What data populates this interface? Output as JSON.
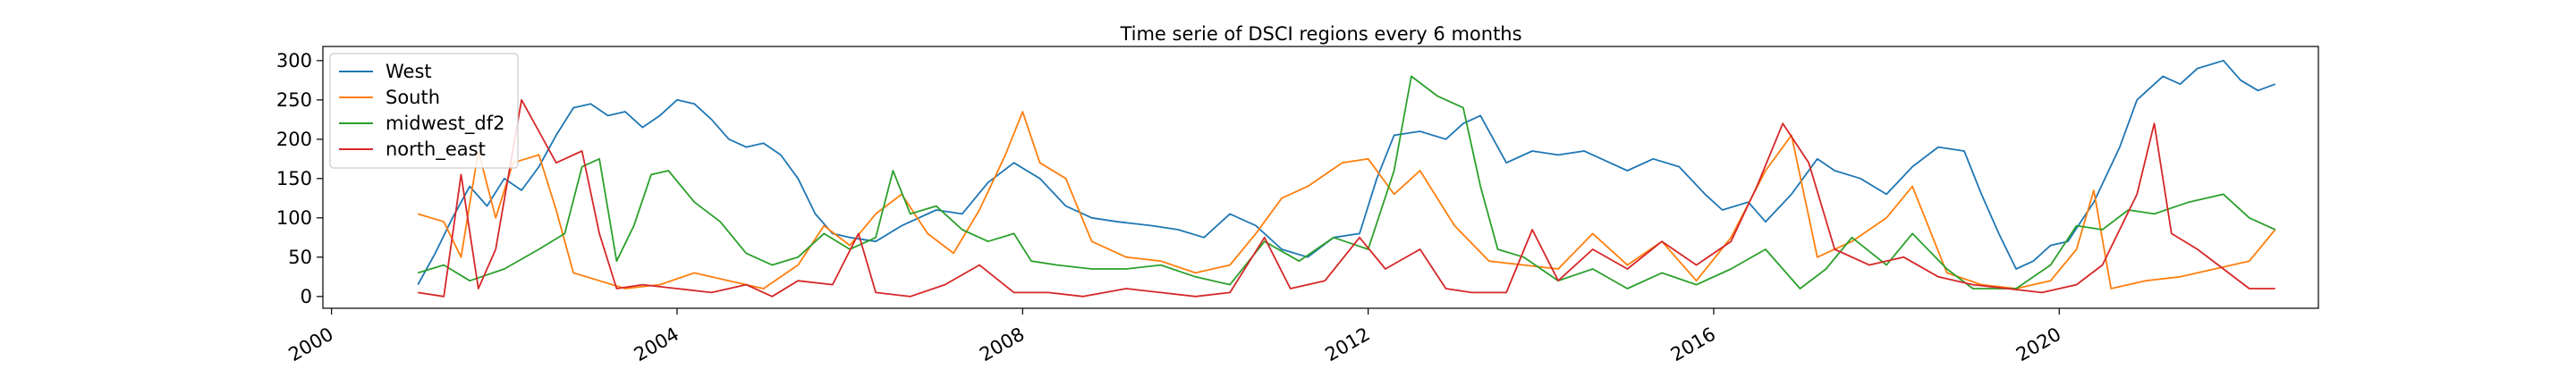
{
  "chart_data": {
    "type": "line",
    "title": "Time serie of DSCI regions every 6 months",
    "xlabel": "",
    "ylabel": "",
    "x_tick_labels": [
      "2000",
      "2004",
      "2008",
      "2012",
      "2016",
      "2020"
    ],
    "x_tick_years": [
      2000,
      2004,
      2008,
      2012,
      2016,
      2020
    ],
    "xlim": [
      1999.9,
      2023.0
    ],
    "y_ticks": [
      0,
      50,
      100,
      150,
      200,
      250,
      300
    ],
    "ylim": [
      -15,
      318
    ],
    "grid": false,
    "legend_position": "top-left",
    "series": [
      {
        "name": "West",
        "color": "#1f77b4",
        "points": [
          [
            2001.0,
            15
          ],
          [
            2001.2,
            55
          ],
          [
            2001.4,
            100
          ],
          [
            2001.6,
            140
          ],
          [
            2001.8,
            115
          ],
          [
            2002.0,
            150
          ],
          [
            2002.2,
            135
          ],
          [
            2002.4,
            165
          ],
          [
            2002.6,
            205
          ],
          [
            2002.8,
            240
          ],
          [
            2003.0,
            245
          ],
          [
            2003.2,
            230
          ],
          [
            2003.4,
            235
          ],
          [
            2003.6,
            215
          ],
          [
            2003.8,
            230
          ],
          [
            2004.0,
            250
          ],
          [
            2004.2,
            245
          ],
          [
            2004.4,
            225
          ],
          [
            2004.6,
            200
          ],
          [
            2004.8,
            190
          ],
          [
            2005.0,
            195
          ],
          [
            2005.2,
            180
          ],
          [
            2005.4,
            150
          ],
          [
            2005.6,
            105
          ],
          [
            2005.8,
            80
          ],
          [
            2006.0,
            75
          ],
          [
            2006.3,
            70
          ],
          [
            2006.6,
            90
          ],
          [
            2007.0,
            110
          ],
          [
            2007.3,
            105
          ],
          [
            2007.6,
            145
          ],
          [
            2007.9,
            170
          ],
          [
            2008.2,
            150
          ],
          [
            2008.5,
            115
          ],
          [
            2008.8,
            100
          ],
          [
            2009.1,
            95
          ],
          [
            2009.5,
            90
          ],
          [
            2009.8,
            85
          ],
          [
            2010.1,
            75
          ],
          [
            2010.4,
            105
          ],
          [
            2010.7,
            90
          ],
          [
            2011.0,
            60
          ],
          [
            2011.3,
            50
          ],
          [
            2011.6,
            75
          ],
          [
            2011.9,
            80
          ],
          [
            2012.1,
            150
          ],
          [
            2012.3,
            205
          ],
          [
            2012.6,
            210
          ],
          [
            2012.9,
            200
          ],
          [
            2013.1,
            220
          ],
          [
            2013.3,
            230
          ],
          [
            2013.6,
            170
          ],
          [
            2013.9,
            185
          ],
          [
            2014.2,
            180
          ],
          [
            2014.5,
            185
          ],
          [
            2014.8,
            170
          ],
          [
            2015.0,
            160
          ],
          [
            2015.3,
            175
          ],
          [
            2015.6,
            165
          ],
          [
            2015.9,
            130
          ],
          [
            2016.1,
            110
          ],
          [
            2016.4,
            120
          ],
          [
            2016.6,
            95
          ],
          [
            2016.9,
            130
          ],
          [
            2017.2,
            175
          ],
          [
            2017.4,
            160
          ],
          [
            2017.7,
            150
          ],
          [
            2018.0,
            130
          ],
          [
            2018.3,
            165
          ],
          [
            2018.6,
            190
          ],
          [
            2018.9,
            185
          ],
          [
            2019.1,
            130
          ],
          [
            2019.3,
            80
          ],
          [
            2019.5,
            35
          ],
          [
            2019.7,
            45
          ],
          [
            2019.9,
            65
          ],
          [
            2020.1,
            70
          ],
          [
            2020.4,
            120
          ],
          [
            2020.7,
            190
          ],
          [
            2020.9,
            250
          ],
          [
            2021.2,
            280
          ],
          [
            2021.4,
            270
          ],
          [
            2021.6,
            290
          ],
          [
            2021.9,
            300
          ],
          [
            2022.1,
            275
          ],
          [
            2022.3,
            262
          ],
          [
            2022.5,
            270
          ]
        ]
      },
      {
        "name": "South",
        "color": "#ff7f0e",
        "points": [
          [
            2001.0,
            105
          ],
          [
            2001.3,
            95
          ],
          [
            2001.5,
            50
          ],
          [
            2001.7,
            185
          ],
          [
            2001.9,
            100
          ],
          [
            2002.1,
            170
          ],
          [
            2002.4,
            180
          ],
          [
            2002.6,
            110
          ],
          [
            2002.8,
            30
          ],
          [
            2003.1,
            20
          ],
          [
            2003.4,
            10
          ],
          [
            2003.8,
            15
          ],
          [
            2004.2,
            30
          ],
          [
            2004.6,
            20
          ],
          [
            2005.0,
            10
          ],
          [
            2005.4,
            40
          ],
          [
            2005.7,
            90
          ],
          [
            2006.0,
            65
          ],
          [
            2006.3,
            105
          ],
          [
            2006.6,
            130
          ],
          [
            2006.9,
            80
          ],
          [
            2007.2,
            55
          ],
          [
            2007.5,
            110
          ],
          [
            2007.8,
            180
          ],
          [
            2008.0,
            235
          ],
          [
            2008.2,
            170
          ],
          [
            2008.5,
            150
          ],
          [
            2008.8,
            70
          ],
          [
            2009.2,
            50
          ],
          [
            2009.6,
            45
          ],
          [
            2010.0,
            30
          ],
          [
            2010.4,
            40
          ],
          [
            2010.7,
            80
          ],
          [
            2011.0,
            125
          ],
          [
            2011.3,
            140
          ],
          [
            2011.7,
            170
          ],
          [
            2012.0,
            175
          ],
          [
            2012.3,
            130
          ],
          [
            2012.6,
            160
          ],
          [
            2013.0,
            90
          ],
          [
            2013.4,
            45
          ],
          [
            2013.8,
            40
          ],
          [
            2014.2,
            35
          ],
          [
            2014.6,
            80
          ],
          [
            2015.0,
            40
          ],
          [
            2015.4,
            70
          ],
          [
            2015.8,
            20
          ],
          [
            2016.2,
            75
          ],
          [
            2016.6,
            160
          ],
          [
            2016.9,
            205
          ],
          [
            2017.2,
            50
          ],
          [
            2017.6,
            70
          ],
          [
            2018.0,
            100
          ],
          [
            2018.3,
            140
          ],
          [
            2018.7,
            30
          ],
          [
            2019.1,
            15
          ],
          [
            2019.5,
            10
          ],
          [
            2019.9,
            20
          ],
          [
            2020.2,
            60
          ],
          [
            2020.4,
            135
          ],
          [
            2020.6,
            10
          ],
          [
            2021.0,
            20
          ],
          [
            2021.4,
            25
          ],
          [
            2021.8,
            35
          ],
          [
            2022.2,
            45
          ],
          [
            2022.5,
            85
          ]
        ]
      },
      {
        "name": "midwest_df2",
        "color": "#2ca02c",
        "points": [
          [
            2001.0,
            30
          ],
          [
            2001.3,
            40
          ],
          [
            2001.6,
            20
          ],
          [
            2002.0,
            35
          ],
          [
            2002.4,
            60
          ],
          [
            2002.7,
            80
          ],
          [
            2002.9,
            165
          ],
          [
            2003.1,
            175
          ],
          [
            2003.3,
            45
          ],
          [
            2003.5,
            90
          ],
          [
            2003.7,
            155
          ],
          [
            2003.9,
            160
          ],
          [
            2004.2,
            120
          ],
          [
            2004.5,
            95
          ],
          [
            2004.8,
            55
          ],
          [
            2005.1,
            40
          ],
          [
            2005.4,
            50
          ],
          [
            2005.7,
            80
          ],
          [
            2006.0,
            60
          ],
          [
            2006.3,
            75
          ],
          [
            2006.5,
            160
          ],
          [
            2006.7,
            105
          ],
          [
            2007.0,
            115
          ],
          [
            2007.3,
            85
          ],
          [
            2007.6,
            70
          ],
          [
            2007.9,
            80
          ],
          [
            2008.1,
            45
          ],
          [
            2008.4,
            40
          ],
          [
            2008.8,
            35
          ],
          [
            2009.2,
            35
          ],
          [
            2009.6,
            40
          ],
          [
            2010.0,
            25
          ],
          [
            2010.4,
            15
          ],
          [
            2010.8,
            70
          ],
          [
            2011.2,
            45
          ],
          [
            2011.6,
            75
          ],
          [
            2012.0,
            60
          ],
          [
            2012.3,
            160
          ],
          [
            2012.5,
            280
          ],
          [
            2012.8,
            255
          ],
          [
            2013.1,
            240
          ],
          [
            2013.3,
            140
          ],
          [
            2013.5,
            60
          ],
          [
            2013.8,
            50
          ],
          [
            2014.2,
            20
          ],
          [
            2014.6,
            35
          ],
          [
            2015.0,
            10
          ],
          [
            2015.4,
            30
          ],
          [
            2015.8,
            15
          ],
          [
            2016.2,
            35
          ],
          [
            2016.6,
            60
          ],
          [
            2017.0,
            10
          ],
          [
            2017.3,
            35
          ],
          [
            2017.6,
            75
          ],
          [
            2018.0,
            40
          ],
          [
            2018.3,
            80
          ],
          [
            2018.7,
            35
          ],
          [
            2019.0,
            10
          ],
          [
            2019.5,
            10
          ],
          [
            2019.9,
            40
          ],
          [
            2020.2,
            90
          ],
          [
            2020.5,
            85
          ],
          [
            2020.8,
            110
          ],
          [
            2021.1,
            105
          ],
          [
            2021.5,
            120
          ],
          [
            2021.9,
            130
          ],
          [
            2022.2,
            100
          ],
          [
            2022.5,
            85
          ]
        ]
      },
      {
        "name": "north_east",
        "color": "#d62728",
        "points": [
          [
            2001.0,
            5
          ],
          [
            2001.3,
            0
          ],
          [
            2001.5,
            155
          ],
          [
            2001.7,
            10
          ],
          [
            2001.9,
            60
          ],
          [
            2002.2,
            250
          ],
          [
            2002.4,
            210
          ],
          [
            2002.6,
            170
          ],
          [
            2002.9,
            185
          ],
          [
            2003.1,
            80
          ],
          [
            2003.3,
            10
          ],
          [
            2003.6,
            15
          ],
          [
            2004.0,
            10
          ],
          [
            2004.4,
            5
          ],
          [
            2004.8,
            15
          ],
          [
            2005.1,
            0
          ],
          [
            2005.4,
            20
          ],
          [
            2005.8,
            15
          ],
          [
            2006.1,
            80
          ],
          [
            2006.3,
            5
          ],
          [
            2006.7,
            0
          ],
          [
            2007.1,
            15
          ],
          [
            2007.5,
            40
          ],
          [
            2007.9,
            5
          ],
          [
            2008.3,
            5
          ],
          [
            2008.7,
            0
          ],
          [
            2009.2,
            10
          ],
          [
            2009.6,
            5
          ],
          [
            2010.0,
            0
          ],
          [
            2010.4,
            5
          ],
          [
            2010.8,
            75
          ],
          [
            2011.1,
            10
          ],
          [
            2011.5,
            20
          ],
          [
            2011.9,
            75
          ],
          [
            2012.2,
            35
          ],
          [
            2012.6,
            60
          ],
          [
            2012.9,
            10
          ],
          [
            2013.2,
            5
          ],
          [
            2013.6,
            5
          ],
          [
            2013.9,
            85
          ],
          [
            2014.2,
            20
          ],
          [
            2014.6,
            60
          ],
          [
            2015.0,
            35
          ],
          [
            2015.4,
            70
          ],
          [
            2015.8,
            40
          ],
          [
            2016.2,
            70
          ],
          [
            2016.5,
            140
          ],
          [
            2016.8,
            220
          ],
          [
            2017.1,
            170
          ],
          [
            2017.4,
            60
          ],
          [
            2017.8,
            40
          ],
          [
            2018.2,
            50
          ],
          [
            2018.6,
            25
          ],
          [
            2019.0,
            15
          ],
          [
            2019.4,
            10
          ],
          [
            2019.8,
            5
          ],
          [
            2020.2,
            15
          ],
          [
            2020.5,
            40
          ],
          [
            2020.9,
            130
          ],
          [
            2021.1,
            220
          ],
          [
            2021.3,
            80
          ],
          [
            2021.6,
            60
          ],
          [
            2021.9,
            35
          ],
          [
            2022.2,
            10
          ],
          [
            2022.5,
            10
          ]
        ]
      }
    ]
  }
}
